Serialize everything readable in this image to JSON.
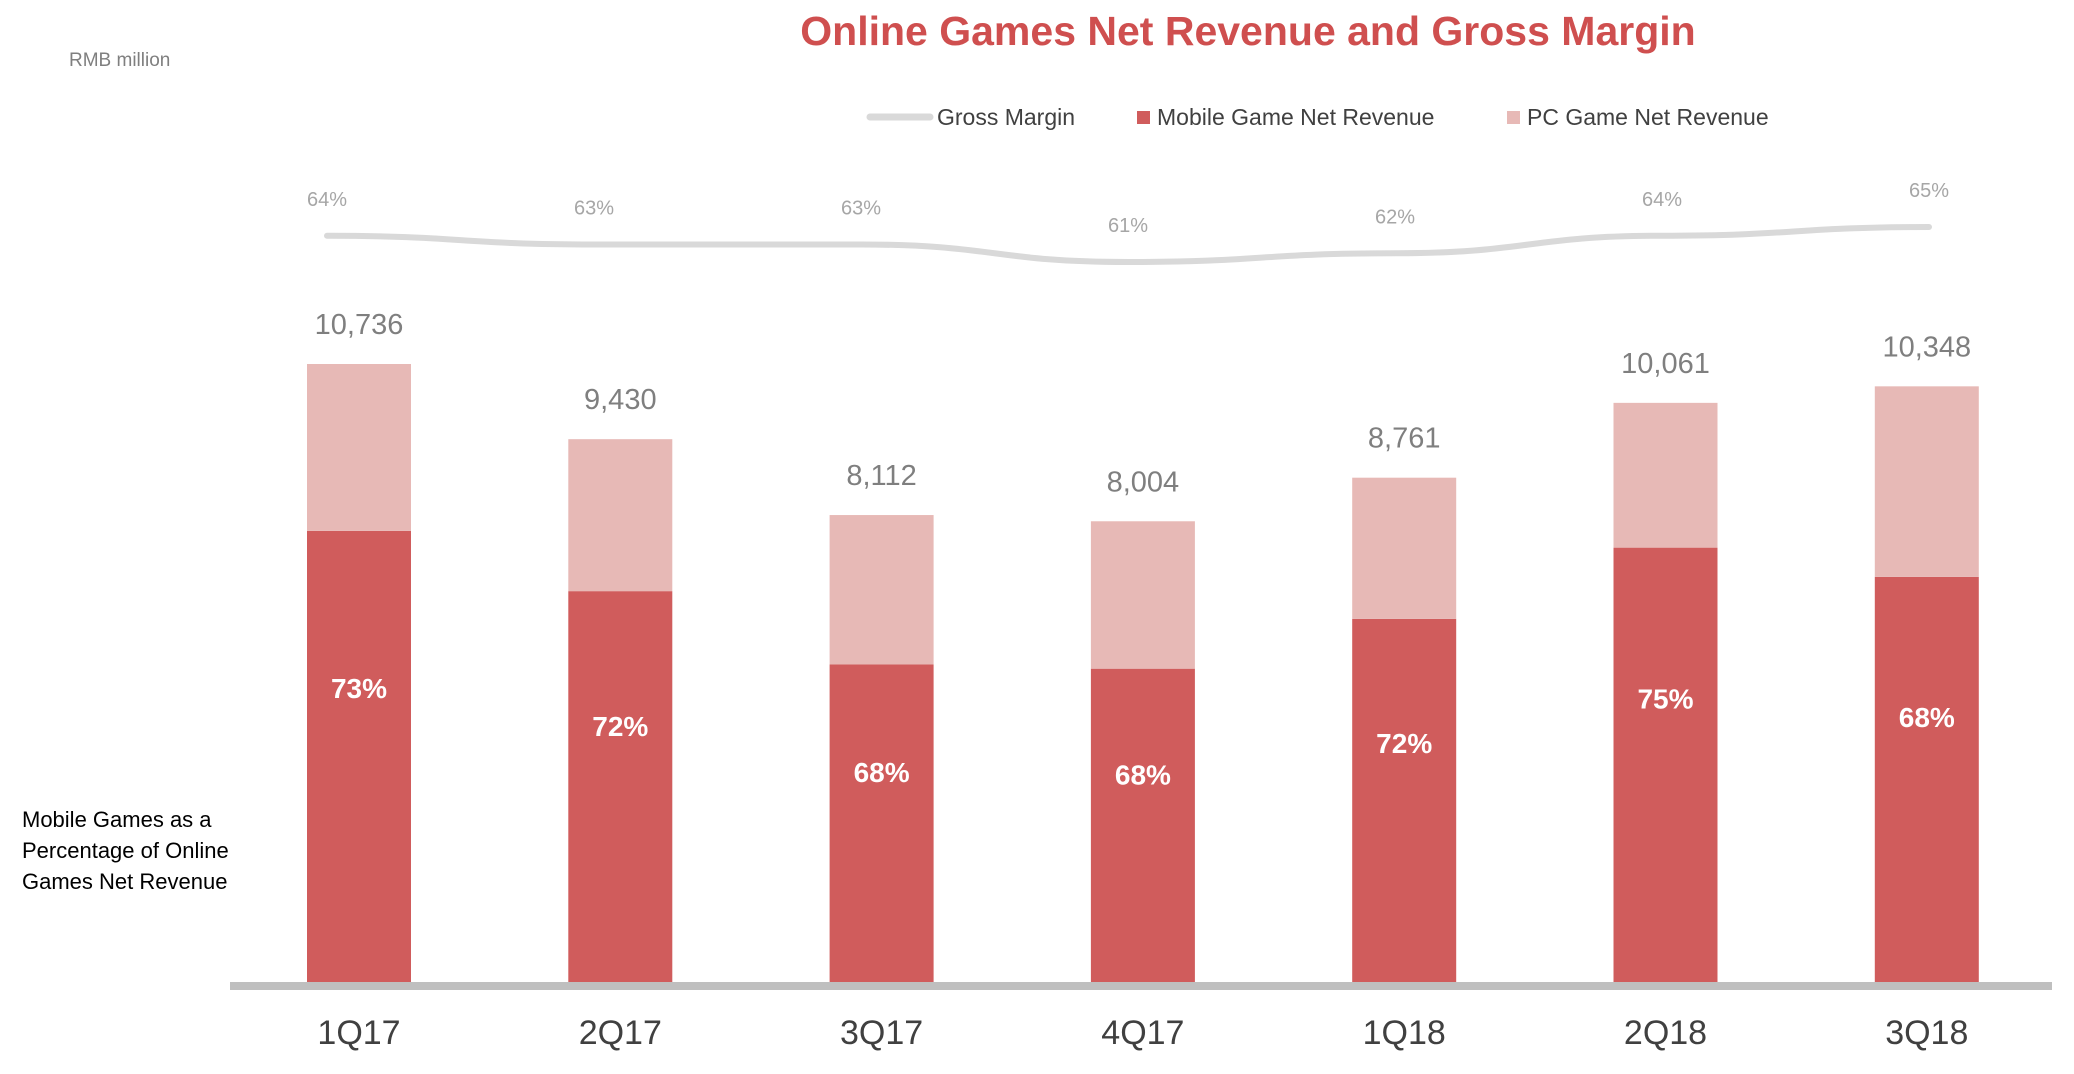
{
  "unit_label": "RMB million",
  "side_note": "Mobile Games as a Percentage of Online Games Net Revenue",
  "colors": {
    "title": "#cf4f4f",
    "mobile": "#d05c5c",
    "pc": "#e7b9b6",
    "gross_margin_line": "#d9d9d9",
    "label_gray": "#7f7f7f",
    "axis": "#bfbfbf"
  },
  "chart_data": {
    "type": "bar",
    "stacked": true,
    "title": "Online Games Net Revenue and Gross Margin",
    "categories": [
      "1Q17",
      "2Q17",
      "3Q17",
      "4Q17",
      "1Q18",
      "2Q18",
      "3Q18"
    ],
    "totals": [
      10736,
      9430,
      8112,
      8004,
      8761,
      10061,
      10348
    ],
    "total_labels": [
      "10,736",
      "9,430",
      "8,112",
      "8,004",
      "8,761",
      "10,061",
      "10,348"
    ],
    "mobile_pct_labels": [
      "73%",
      "72%",
      "68%",
      "68%",
      "72%",
      "75%",
      "68%"
    ],
    "series": [
      {
        "name": "Mobile Game Net Revenue",
        "values": [
          7837,
          6790,
          5516,
          5443,
          6308,
          7546,
          7037
        ]
      },
      {
        "name": "PC Game Net Revenue",
        "values": [
          2899,
          2640,
          2596,
          2561,
          2453,
          2515,
          3311
        ]
      }
    ],
    "line_series": {
      "name": "Gross Margin",
      "values": [
        64,
        63,
        63,
        61,
        62,
        64,
        65
      ],
      "labels": [
        "64%",
        "63%",
        "63%",
        "61%",
        "62%",
        "64%",
        "65%"
      ]
    },
    "legend": [
      "Gross Margin",
      "Mobile Game Net Revenue",
      "PC Game Net Revenue"
    ],
    "legend_position": "top",
    "ylim": [
      0,
      10736
    ],
    "grid": false
  }
}
